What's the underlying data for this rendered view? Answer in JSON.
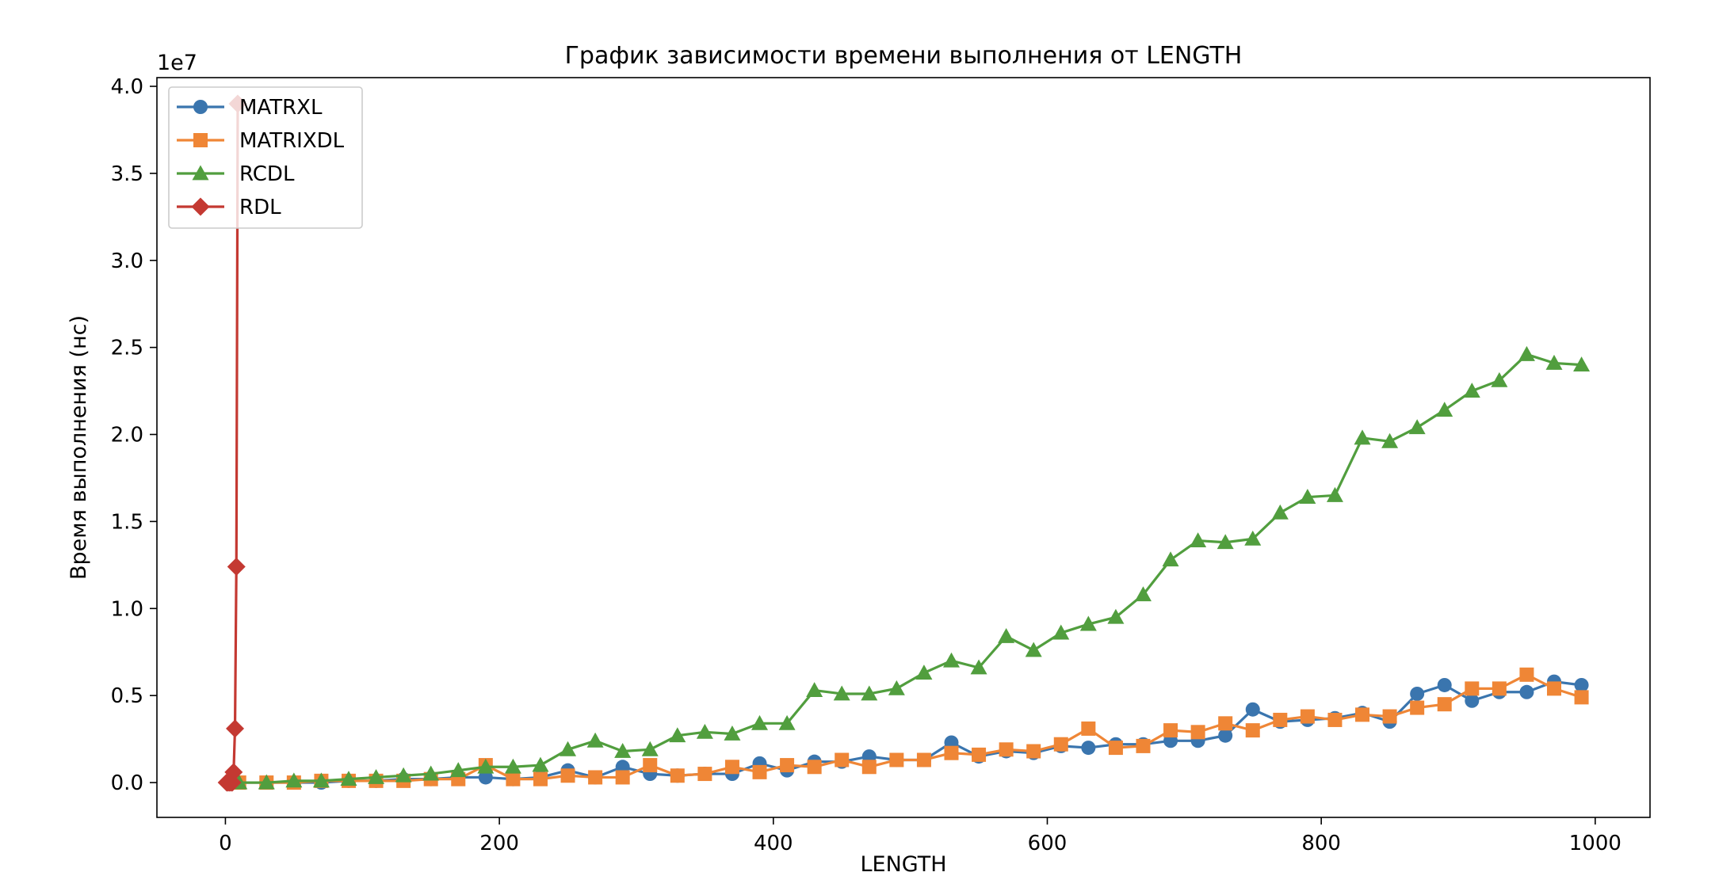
{
  "chart_data": {
    "type": "line",
    "title": "График зависимости времени выполнения от LENGTH",
    "xlabel": "LENGTH",
    "ylabel": "Время выполнения (нс)",
    "y_offset_label": "1e7",
    "xlim": [
      -50,
      1040
    ],
    "ylim": [
      -0.2,
      4.05
    ],
    "y_scale": 10000000,
    "x_ticks": [
      0,
      200,
      400,
      600,
      800,
      1000
    ],
    "x_tick_labels": [
      "0",
      "200",
      "400",
      "600",
      "800",
      "1000"
    ],
    "y_ticks": [
      0,
      0.5,
      1,
      1.5,
      2,
      2.5,
      3,
      3.5,
      4
    ],
    "y_tick_labels": [
      "0.0",
      "0.5",
      "1.0",
      "1.5",
      "2.0",
      "2.5",
      "3.0",
      "3.5",
      "4.0"
    ],
    "grid": false,
    "legend_position": "top-left",
    "series": [
      {
        "name": "MATRXL",
        "color": "#3a75ae",
        "marker": "circle",
        "x": [
          10,
          30,
          50,
          70,
          90,
          110,
          130,
          150,
          170,
          190,
          210,
          230,
          250,
          270,
          290,
          310,
          330,
          350,
          370,
          390,
          410,
          430,
          450,
          470,
          490,
          510,
          530,
          550,
          570,
          590,
          610,
          630,
          650,
          670,
          690,
          710,
          730,
          750,
          770,
          790,
          810,
          830,
          850,
          870,
          890,
          910,
          930,
          950,
          970,
          990
        ],
        "y": [
          0.0,
          0.0,
          0.0,
          0.0,
          0.01,
          0.01,
          0.02,
          0.02,
          0.03,
          0.03,
          0.02,
          0.03,
          0.07,
          0.03,
          0.09,
          0.05,
          0.04,
          0.05,
          0.05,
          0.11,
          0.07,
          0.12,
          0.12,
          0.15,
          0.13,
          0.13,
          0.23,
          0.15,
          0.18,
          0.17,
          0.21,
          0.2,
          0.22,
          0.22,
          0.24,
          0.24,
          0.27,
          0.42,
          0.35,
          0.36,
          0.37,
          0.4,
          0.35,
          0.51,
          0.56,
          0.47,
          0.52,
          0.52,
          0.58,
          0.56
        ]
      },
      {
        "name": "MATRIXDL",
        "color": "#ef8636",
        "marker": "square",
        "x": [
          10,
          30,
          50,
          70,
          90,
          110,
          130,
          150,
          170,
          190,
          210,
          230,
          250,
          270,
          290,
          310,
          330,
          350,
          370,
          390,
          410,
          430,
          450,
          470,
          490,
          510,
          530,
          550,
          570,
          590,
          610,
          630,
          650,
          670,
          690,
          710,
          730,
          750,
          770,
          790,
          810,
          830,
          850,
          870,
          890,
          910,
          930,
          950,
          970,
          990
        ],
        "y": [
          0.0,
          0.0,
          0.0,
          0.01,
          0.01,
          0.01,
          0.01,
          0.02,
          0.02,
          0.1,
          0.02,
          0.02,
          0.04,
          0.03,
          0.03,
          0.1,
          0.04,
          0.05,
          0.09,
          0.06,
          0.1,
          0.09,
          0.13,
          0.09,
          0.13,
          0.13,
          0.17,
          0.16,
          0.19,
          0.18,
          0.22,
          0.31,
          0.2,
          0.21,
          0.3,
          0.29,
          0.34,
          0.3,
          0.36,
          0.38,
          0.36,
          0.39,
          0.38,
          0.43,
          0.45,
          0.54,
          0.54,
          0.62,
          0.54,
          0.49
        ]
      },
      {
        "name": "RCDL",
        "color": "#519e3e",
        "marker": "triangle",
        "x": [
          10,
          30,
          50,
          70,
          90,
          110,
          130,
          150,
          170,
          190,
          210,
          230,
          250,
          270,
          290,
          310,
          330,
          350,
          370,
          390,
          410,
          430,
          450,
          470,
          490,
          510,
          530,
          550,
          570,
          590,
          610,
          630,
          650,
          670,
          690,
          710,
          730,
          750,
          770,
          790,
          810,
          830,
          850,
          870,
          890,
          910,
          930,
          950,
          970,
          990
        ],
        "y": [
          0.0,
          0.0,
          0.01,
          0.01,
          0.02,
          0.03,
          0.04,
          0.05,
          0.07,
          0.09,
          0.09,
          0.1,
          0.19,
          0.24,
          0.18,
          0.19,
          0.27,
          0.29,
          0.28,
          0.34,
          0.34,
          0.53,
          0.51,
          0.51,
          0.54,
          0.63,
          0.7,
          0.66,
          0.84,
          0.76,
          0.86,
          0.91,
          0.95,
          1.08,
          1.28,
          1.39,
          1.38,
          1.4,
          1.55,
          1.64,
          1.65,
          1.98,
          1.96,
          2.04,
          2.14,
          2.25,
          2.31,
          2.46,
          2.41,
          2.4
        ]
      },
      {
        "name": "RDL",
        "color": "#c43932",
        "marker": "diamond",
        "x": [
          1,
          2,
          3,
          4,
          5,
          6,
          7,
          8,
          9
        ],
        "y": [
          0.0,
          0.0,
          0.0,
          0.0,
          0.0,
          0.06,
          0.31,
          1.24,
          3.9
        ]
      }
    ]
  }
}
